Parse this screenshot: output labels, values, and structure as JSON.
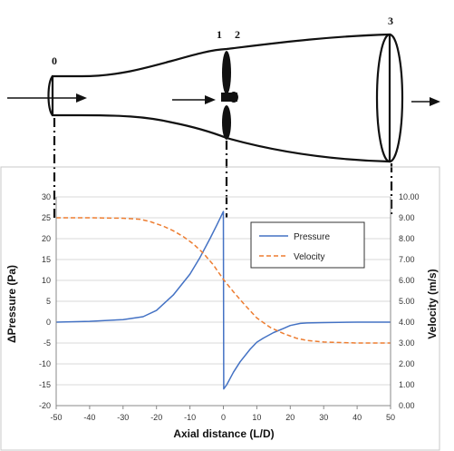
{
  "stations": [
    "0",
    "1",
    "2",
    "3"
  ],
  "chart_data": {
    "type": "line",
    "xlabel": "Axial distance (L/D)",
    "ylabel": "ΔPressure (Pa)",
    "y2label": "Velocity (m/s)",
    "xlim": [
      -50,
      50
    ],
    "xticks": [
      -50,
      -40,
      -30,
      -20,
      -10,
      0,
      10,
      20,
      30,
      40,
      50
    ],
    "ylim": [
      -20,
      30
    ],
    "yticks": [
      -20,
      -15,
      -10,
      -5,
      0,
      5,
      10,
      15,
      20,
      25,
      30
    ],
    "y2lim": [
      0,
      10
    ],
    "y2ticks": [
      "0.00",
      "1.00",
      "2.00",
      "3.00",
      "4.00",
      "5.00",
      "6.00",
      "7.00",
      "8.00",
      "9.00",
      "10.00"
    ],
    "grid": "horizontal",
    "legend_position": "upper-right",
    "series": [
      {
        "name": "Pressure",
        "axis": "left",
        "color": "#4472c4",
        "style": "solid",
        "x": [
          -50,
          -40,
          -30,
          -24,
          -20,
          -15,
          -10,
          -7,
          -4,
          -2,
          0,
          0.1,
          1,
          3,
          5,
          8,
          10,
          12,
          15,
          18,
          20,
          23,
          25,
          30,
          40,
          50
        ],
        "y": [
          0,
          0.2,
          0.6,
          1.3,
          2.8,
          6.5,
          11.5,
          15.5,
          20.0,
          23.2,
          26.5,
          -16,
          -15,
          -12,
          -9.5,
          -6.5,
          -4.8,
          -3.8,
          -2.5,
          -1.5,
          -0.8,
          -0.3,
          -0.2,
          -0.1,
          0,
          0
        ]
      },
      {
        "name": "Velocity",
        "axis": "right",
        "color": "#ed7d31",
        "style": "dashed",
        "x": [
          -50,
          -40,
          -30,
          -25,
          -22,
          -18,
          -15,
          -12,
          -9,
          -6,
          -3,
          0,
          3,
          6,
          10,
          14,
          18,
          22,
          25,
          30,
          40,
          50
        ],
        "y": [
          9.0,
          9.0,
          8.98,
          8.93,
          8.82,
          8.6,
          8.38,
          8.1,
          7.75,
          7.3,
          6.75,
          6.05,
          5.45,
          4.9,
          4.2,
          3.75,
          3.45,
          3.22,
          3.12,
          3.05,
          3.0,
          3.0
        ]
      }
    ]
  }
}
